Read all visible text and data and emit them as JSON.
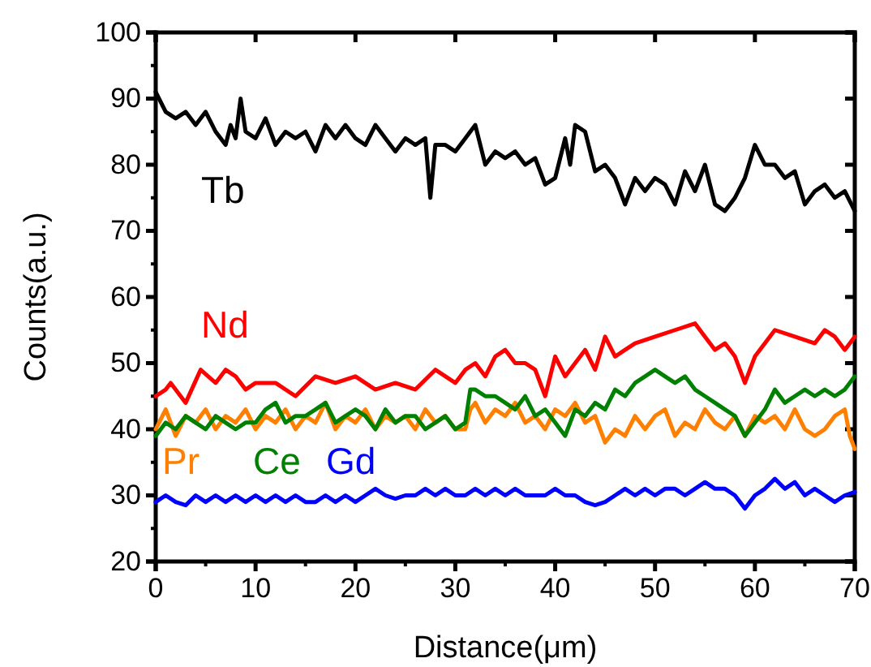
{
  "chart_data": {
    "type": "line",
    "xlabel": "Distance(μm)",
    "ylabel": "Counts(a.u.)",
    "xlim": [
      0,
      70
    ],
    "ylim": [
      20,
      100
    ],
    "xticks": [
      0,
      10,
      20,
      30,
      40,
      50,
      60,
      70
    ],
    "yticks": [
      20,
      30,
      40,
      50,
      60,
      70,
      80,
      90,
      100
    ],
    "grid": false,
    "legend": false,
    "line_style": "solid",
    "marker": "none",
    "series": [
      {
        "name": "Tb",
        "color": "#000000",
        "x": [
          0,
          1,
          2,
          3,
          4,
          5,
          6,
          7,
          7.5,
          8,
          8.5,
          9,
          10,
          11,
          12,
          13,
          14,
          15,
          16,
          17,
          18,
          19,
          20,
          21,
          22,
          23,
          24,
          25,
          26,
          27,
          27.5,
          28,
          29,
          30,
          31,
          32,
          33,
          34,
          35,
          36,
          37,
          38,
          39,
          40,
          41,
          41.5,
          42,
          43,
          44,
          45,
          46,
          47,
          48,
          49,
          50,
          51,
          52,
          53,
          54,
          55,
          56,
          57,
          58,
          59,
          60,
          61,
          62,
          63,
          64,
          65,
          66,
          67,
          68,
          69,
          70
        ],
        "values": [
          91,
          88,
          87,
          88,
          86,
          88,
          85,
          83,
          86,
          84,
          90,
          85,
          84,
          87,
          83,
          85,
          84,
          85,
          82,
          86,
          84,
          86,
          84,
          83,
          86,
          84,
          82,
          84,
          83,
          84,
          75,
          83,
          83,
          82,
          84,
          86,
          80,
          82,
          81,
          82,
          80,
          81,
          77,
          78,
          84,
          80,
          86,
          85,
          79,
          80,
          78,
          74,
          78,
          76,
          78,
          77,
          74,
          79,
          76,
          80,
          74,
          73,
          75,
          78,
          83,
          80,
          80,
          78,
          79,
          74,
          76,
          77,
          75,
          76,
          73
        ]
      },
      {
        "name": "Nd",
        "color": "#ff0000",
        "x": [
          0,
          1,
          1.5,
          3,
          4.5,
          6,
          7,
          8,
          9,
          10,
          12,
          14,
          16,
          18,
          20,
          22,
          24,
          26,
          28,
          30,
          31,
          32,
          33,
          34,
          35,
          36,
          37,
          38,
          39,
          40,
          41,
          42,
          43,
          44,
          45,
          46,
          47,
          48,
          50,
          52,
          54,
          55,
          56,
          57,
          58,
          59,
          60,
          61,
          62,
          64,
          66,
          67,
          68,
          69,
          70
        ],
        "values": [
          45,
          46,
          47,
          44,
          49,
          47,
          49,
          48,
          46,
          47,
          47,
          45,
          48,
          47,
          48,
          46,
          47,
          46,
          49,
          47,
          49,
          50,
          48,
          51,
          52,
          50,
          50,
          49,
          45,
          51,
          48,
          50,
          52,
          49,
          54,
          51,
          52,
          53,
          54,
          55,
          56,
          54,
          52,
          53,
          51,
          47,
          51,
          53,
          55,
          54,
          53,
          55,
          54,
          52,
          54
        ]
      },
      {
        "name": "Pr",
        "color": "#ff8000",
        "x": [
          0,
          1,
          2,
          3,
          4,
          5,
          6,
          7,
          8,
          9,
          10,
          11,
          12,
          13,
          14,
          15,
          16,
          17,
          18,
          19,
          20,
          21,
          22,
          23,
          24,
          25,
          26,
          27,
          28,
          29,
          30,
          31,
          31.5,
          32,
          33,
          34,
          35,
          36,
          37,
          38,
          39,
          40,
          41,
          42,
          43,
          44,
          45,
          46,
          47,
          48,
          49,
          50,
          51,
          52,
          53,
          54,
          55,
          56,
          57,
          58,
          59,
          60,
          61,
          62,
          63,
          64,
          65,
          66,
          67,
          68,
          69,
          69.5,
          70
        ],
        "values": [
          40,
          43,
          39,
          42,
          41,
          43,
          40,
          42,
          41,
          43,
          40,
          42,
          41,
          43,
          40,
          42,
          41,
          44,
          40,
          42,
          41,
          43,
          40,
          42,
          41,
          42,
          40,
          43,
          41,
          42,
          40,
          40,
          43,
          44,
          41,
          43,
          42,
          44,
          41,
          42,
          40,
          43,
          42,
          44,
          41,
          42,
          38,
          40,
          39,
          42,
          40,
          42,
          43,
          39,
          41,
          40,
          43,
          41,
          40,
          42,
          39,
          42,
          41,
          42,
          40,
          43,
          40,
          39,
          40,
          42,
          43,
          39,
          37
        ]
      },
      {
        "name": "Ce",
        "color": "#008000",
        "x": [
          0,
          1,
          2,
          3,
          4,
          5,
          6,
          7,
          8,
          9,
          10,
          11,
          12,
          13,
          14,
          15,
          16,
          17,
          18,
          19,
          20,
          21,
          22,
          23,
          24,
          25,
          26,
          27,
          28,
          29,
          30,
          31,
          31.5,
          32,
          33,
          34,
          35,
          36,
          37,
          38,
          39,
          40,
          41,
          42,
          43,
          44,
          45,
          46,
          47,
          48,
          49,
          50,
          51,
          52,
          53,
          54,
          55,
          56,
          57,
          58,
          59,
          60,
          61,
          62,
          63,
          64,
          65,
          66,
          67,
          68,
          69,
          70
        ],
        "values": [
          39,
          41,
          40,
          42,
          41,
          40,
          42,
          41,
          40,
          41,
          41,
          43,
          44,
          41,
          42,
          42,
          43,
          44,
          41,
          42,
          43,
          42,
          40,
          43,
          41,
          42,
          42,
          40,
          41,
          42,
          40,
          41,
          46,
          46,
          45,
          45,
          44,
          43,
          45,
          42,
          43,
          41,
          39,
          43,
          42,
          44,
          43,
          46,
          45,
          47,
          48,
          49,
          48,
          47,
          48,
          46,
          45,
          44,
          43,
          42,
          39,
          41,
          43,
          46,
          44,
          45,
          46,
          45,
          46,
          45,
          46,
          48
        ]
      },
      {
        "name": "Gd",
        "color": "#0000ff",
        "x": [
          0,
          1,
          2,
          3,
          4,
          5,
          6,
          7,
          8,
          9,
          10,
          11,
          12,
          13,
          14,
          15,
          16,
          17,
          18,
          19,
          20,
          21,
          22,
          23,
          24,
          25,
          26,
          27,
          28,
          29,
          30,
          31,
          32,
          33,
          34,
          35,
          36,
          37,
          38,
          39,
          40,
          41,
          42,
          43,
          44,
          45,
          46,
          47,
          48,
          49,
          50,
          51,
          52,
          53,
          54,
          55,
          56,
          57,
          58,
          59,
          60,
          61,
          62,
          63,
          64,
          65,
          66,
          67,
          68,
          69,
          70
        ],
        "values": [
          29,
          30,
          29,
          28.5,
          30,
          29,
          30,
          29,
          30,
          29,
          30,
          29,
          30,
          29,
          30,
          29,
          29,
          30,
          29,
          30,
          29,
          30,
          31,
          30,
          29.5,
          30,
          30,
          31,
          30,
          31,
          30,
          30,
          31,
          30,
          31,
          30,
          31,
          30,
          30,
          30,
          31,
          30,
          30,
          29,
          28.5,
          29,
          30,
          31,
          30,
          31,
          30,
          31,
          31,
          30,
          31,
          32,
          31,
          31,
          30,
          28,
          30,
          31,
          32.5,
          31,
          32,
          30,
          31,
          30,
          29,
          30,
          30.5
        ]
      }
    ]
  }
}
